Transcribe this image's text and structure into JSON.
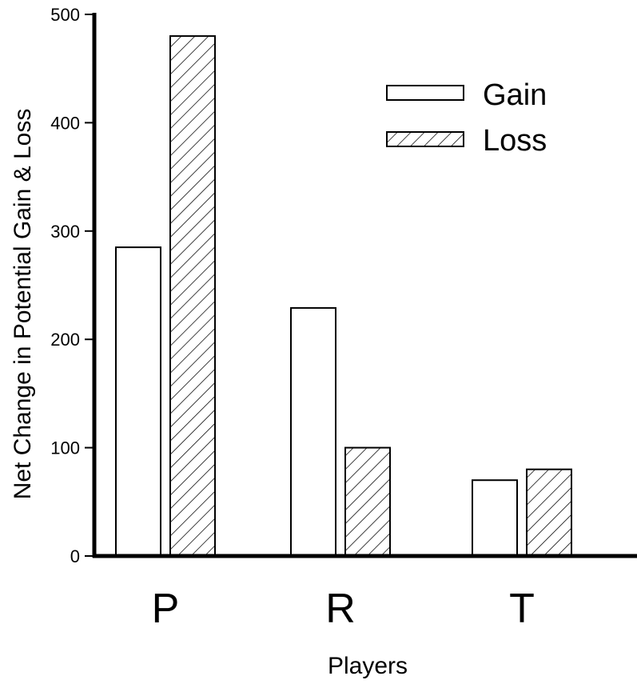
{
  "chart_data": {
    "type": "bar",
    "title": "",
    "xlabel": "Players",
    "ylabel": "Net Change in Potential Gain & Loss",
    "categories": [
      "P",
      "R",
      "T"
    ],
    "series": [
      {
        "name": "Gain",
        "values": [
          285,
          229,
          70
        ],
        "fill": "none"
      },
      {
        "name": "Loss",
        "values": [
          480,
          100,
          80
        ],
        "fill": "hatch"
      }
    ],
    "ylim": [
      0,
      500
    ],
    "yticks": [
      0,
      100,
      200,
      300,
      400,
      500
    ],
    "legend_position": "top-right",
    "grid": false
  }
}
